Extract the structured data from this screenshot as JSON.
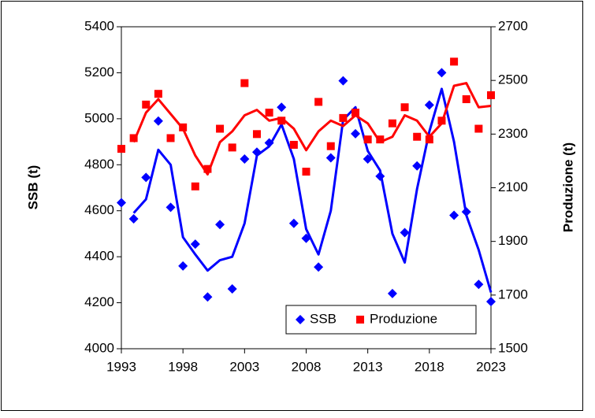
{
  "chart_data": {
    "type": "combo",
    "x": [
      1993,
      1994,
      1995,
      1996,
      1997,
      1998,
      1999,
      2000,
      2001,
      2002,
      2003,
      2004,
      2005,
      2006,
      2007,
      2008,
      2009,
      2010,
      2011,
      2012,
      2013,
      2014,
      2015,
      2016,
      2017,
      2018,
      2019,
      2020,
      2021,
      2022,
      2023
    ],
    "xlim": [
      1993,
      2023
    ],
    "xticks": [
      1993,
      1998,
      2003,
      2008,
      2013,
      2018,
      2023
    ],
    "ylabel": "SSB (t)",
    "ylim": [
      4000,
      5400
    ],
    "yticks": [
      4000,
      4200,
      4400,
      4600,
      4800,
      5000,
      5200,
      5400
    ],
    "y2label": "Produzione (t)",
    "y2lim": [
      1500,
      2700
    ],
    "y2ticks": [
      1500,
      1700,
      1900,
      2100,
      2300,
      2500,
      2700
    ],
    "legend": "lower right",
    "series": [
      {
        "name": "SSB",
        "type": "scatter",
        "color": "#0000ff",
        "marker": "diamond",
        "values": [
          4635,
          4565,
          4745,
          4990,
          4615,
          4360,
          4455,
          4225,
          4540,
          4260,
          4825,
          4855,
          4895,
          5050,
          4545,
          4480,
          4355,
          4830,
          5165,
          4935,
          4825,
          4750,
          4240,
          4505,
          4795,
          5060,
          5200,
          4580,
          4595,
          4280,
          4205
        ]
      },
      {
        "type": "line",
        "color": "#0000ff",
        "values": [
          null,
          4590,
          4650,
          4865,
          4800,
          4485,
          4410,
          4340,
          4385,
          4400,
          4545,
          4840,
          4880,
          4975,
          4825,
          4520,
          4410,
          4600,
          4995,
          5050,
          4860,
          4775,
          4500,
          4375,
          4695,
          4945,
          5130,
          4900,
          4580,
          4430,
          4245
        ]
      },
      {
        "name": "Produzione",
        "type": "scatter",
        "color": "#ff0000",
        "marker": "square",
        "axis": "y2",
        "values": [
          2245,
          2285,
          2410,
          2450,
          2285,
          2325,
          2105,
          2170,
          2320,
          2250,
          2490,
          2300,
          2380,
          2350,
          2260,
          2160,
          2420,
          2255,
          2360,
          2380,
          2280,
          2280,
          2340,
          2400,
          2290,
          2280,
          2350,
          2570,
          2430,
          2320,
          2445
        ]
      },
      {
        "type": "line",
        "color": "#ff0000",
        "axis": "y2",
        "values": [
          null,
          2270,
          2380,
          2430,
          2375,
          2320,
          2220,
          2150,
          2270,
          2310,
          2370,
          2390,
          2350,
          2360,
          2320,
          2240,
          2310,
          2350,
          2330,
          2370,
          2340,
          2270,
          2290,
          2370,
          2350,
          2290,
          2340,
          2480,
          2490,
          2400,
          2405
        ]
      }
    ]
  }
}
